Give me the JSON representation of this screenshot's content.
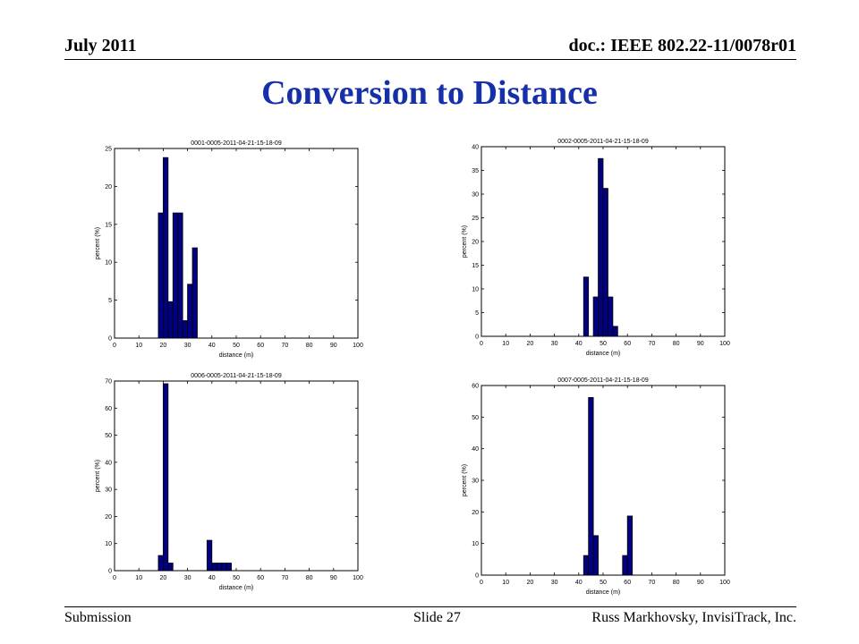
{
  "header": {
    "date": "July 2011",
    "doc_id": "doc.: IEEE 802.22-11/0078r01"
  },
  "slide": {
    "title": "Conversion to Distance"
  },
  "footer": {
    "left": "Submission",
    "center": "Slide 27",
    "right": "Russ Markhovsky, InvisiTrack, Inc."
  },
  "colors": {
    "title": "#1530a8",
    "bar_fill": "#000080",
    "bar_edge": "#000000"
  },
  "chart_data": [
    {
      "type": "bar",
      "title": "0001-0005-2011-04-21-15-18-09",
      "xlabel": "distance (m)",
      "ylabel": "percent (%)",
      "xlim": [
        0,
        100
      ],
      "ylim": [
        0,
        25
      ],
      "xticks": [
        0,
        10,
        20,
        30,
        40,
        50,
        60,
        70,
        80,
        90,
        100
      ],
      "yticks": [
        0,
        5,
        10,
        15,
        20,
        25
      ],
      "x": [
        19,
        21,
        23,
        25,
        27,
        29,
        31,
        33
      ],
      "values": [
        16.5,
        23.8,
        4.8,
        16.5,
        16.5,
        2.3,
        7.1,
        11.9
      ]
    },
    {
      "type": "bar",
      "title": "0002-0005-2011-04-21-15-18-09",
      "xlabel": "distance (m)",
      "ylabel": "percent (%)",
      "xlim": [
        0,
        100
      ],
      "ylim": [
        0,
        40
      ],
      "xticks": [
        0,
        10,
        20,
        30,
        40,
        50,
        60,
        70,
        80,
        90,
        100
      ],
      "yticks": [
        0,
        5,
        10,
        15,
        20,
        25,
        30,
        35,
        40
      ],
      "x": [
        43,
        47,
        49,
        51,
        53,
        55
      ],
      "values": [
        12.5,
        8.3,
        37.5,
        31.2,
        8.3,
        2.1
      ]
    },
    {
      "type": "bar",
      "title": "0006-0005-2011-04-21-15-18-09",
      "xlabel": "distance (m)",
      "ylabel": "percent (%)",
      "xlim": [
        0,
        100
      ],
      "ylim": [
        0,
        70
      ],
      "xticks": [
        0,
        10,
        20,
        30,
        40,
        50,
        60,
        70,
        80,
        90,
        100
      ],
      "yticks": [
        0,
        10,
        20,
        30,
        40,
        50,
        60,
        70
      ],
      "x": [
        19,
        21,
        23,
        39,
        41,
        43,
        45,
        47
      ],
      "values": [
        5.6,
        69,
        2.8,
        11.2,
        2.8,
        2.8,
        2.8,
        2.8
      ]
    },
    {
      "type": "bar",
      "title": "0007-0005-2011-04-21-15-18-09",
      "xlabel": "distance (m)",
      "ylabel": "percent (%)",
      "xlim": [
        0,
        100
      ],
      "ylim": [
        0,
        60
      ],
      "xticks": [
        0,
        10,
        20,
        30,
        40,
        50,
        60,
        70,
        80,
        90,
        100
      ],
      "yticks": [
        0,
        10,
        20,
        30,
        40,
        50,
        60
      ],
      "x": [
        43,
        45,
        47,
        59,
        61
      ],
      "values": [
        6.2,
        56.2,
        12.5,
        6.2,
        18.7
      ]
    }
  ]
}
